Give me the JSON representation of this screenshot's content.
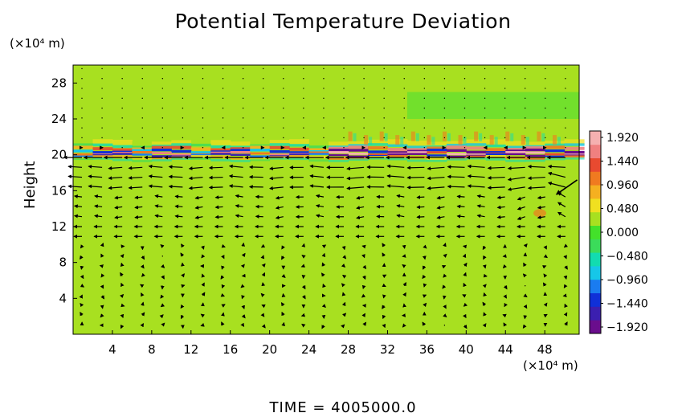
{
  "page": {
    "title": "Potential Temperature Deviation",
    "time_label": "TIME = 4005000.0"
  },
  "chart_data": {
    "type": "heatmap",
    "title": "Potential Temperature Deviation",
    "ylabel": "Height",
    "xlabel": "",
    "y_units": "(×10⁴ m)",
    "x_units": "(×10⁴ m)",
    "xlim": [
      0,
      51.5
    ],
    "ylim": [
      0,
      30
    ],
    "xticks": [
      "4",
      "8",
      "12",
      "16",
      "20",
      "24",
      "28",
      "32",
      "36",
      "40",
      "44",
      "48"
    ],
    "yticks": [
      "4",
      "8",
      "12",
      "16",
      "20",
      "24",
      "28"
    ],
    "colorbar": {
      "min": -1.92,
      "max": 1.92,
      "ticks": [
        "1.920",
        "1.440",
        "0.960",
        "0.480",
        "0.000",
        "−0.480",
        "−0.960",
        "−1.440",
        "−1.920"
      ],
      "colors": [
        "#6a0d8d",
        "#3b1fb0",
        "#1030d8",
        "#1a7cf0",
        "#16c7e8",
        "#12dcb0",
        "#3bdc5a",
        "#43e12a",
        "#a8e020",
        "#f0e020",
        "#f5b020",
        "#f07a20",
        "#e84a30",
        "#f08080",
        "#f5b0b0"
      ]
    },
    "background_value": 0.25,
    "inversion_band": {
      "y": 20.2,
      "note": "strong alternating positive/negative anomalies near tropopause"
    },
    "vector_field": "horizontal wind vectors, strong westward flow between heights 10 and 20"
  }
}
